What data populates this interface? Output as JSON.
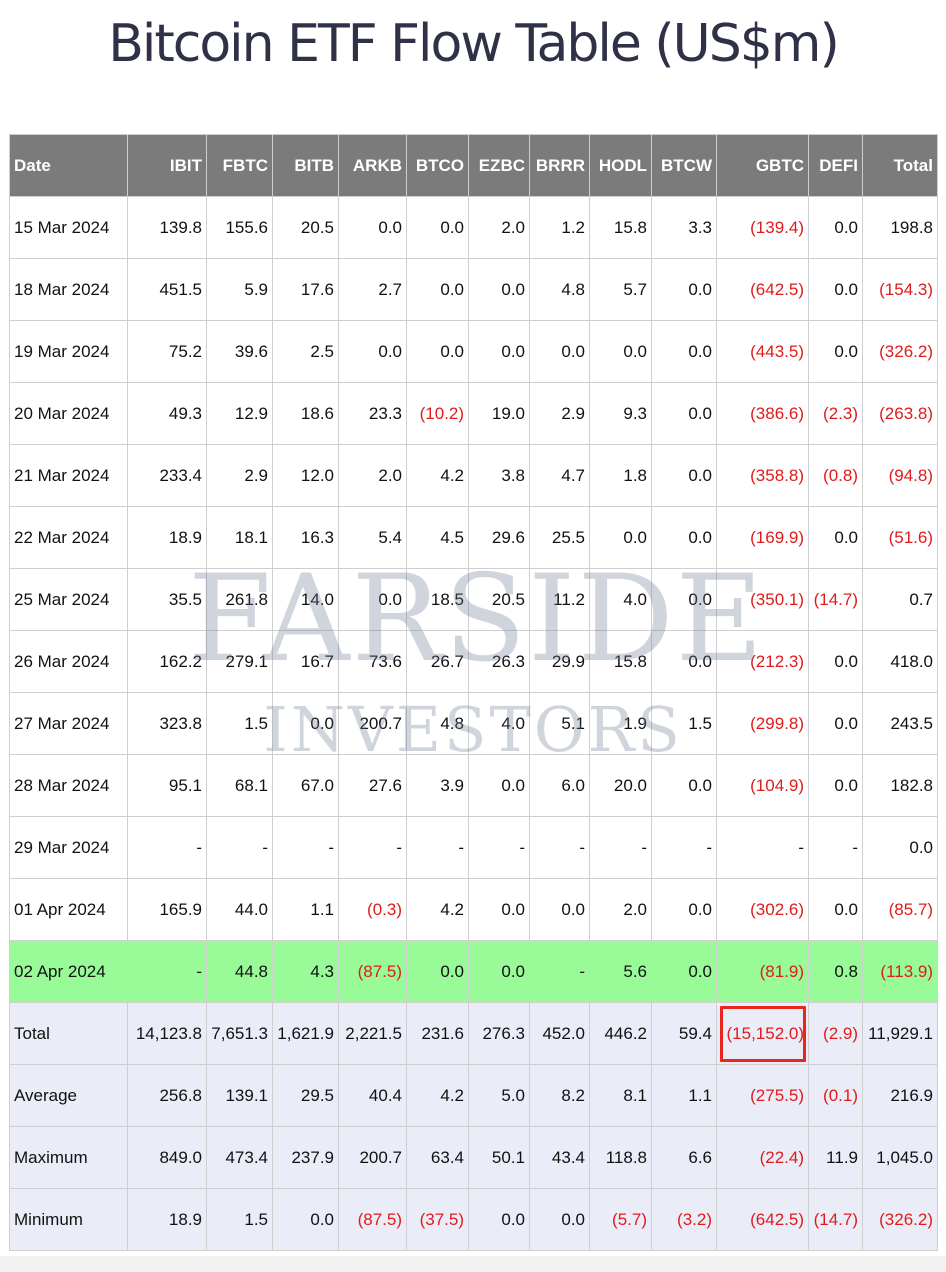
{
  "title": "Bitcoin ETF Flow Table (US$m)",
  "watermark": {
    "line1": "Farside",
    "line2": "Investors"
  },
  "columns": [
    "Date",
    "IBIT",
    "FBTC",
    "BITB",
    "ARKB",
    "BTCO",
    "EZBC",
    "BRRR",
    "HODL",
    "BTCW",
    "GBTC",
    "DEFI",
    "Total"
  ],
  "rows": [
    [
      "15 Mar 2024",
      "139.8",
      "155.6",
      "20.5",
      "0.0",
      "0.0",
      "2.0",
      "1.2",
      "15.8",
      "3.3",
      "(139.4)",
      "0.0",
      "198.8"
    ],
    [
      "18 Mar 2024",
      "451.5",
      "5.9",
      "17.6",
      "2.7",
      "0.0",
      "0.0",
      "4.8",
      "5.7",
      "0.0",
      "(642.5)",
      "0.0",
      "(154.3)"
    ],
    [
      "19 Mar 2024",
      "75.2",
      "39.6",
      "2.5",
      "0.0",
      "0.0",
      "0.0",
      "0.0",
      "0.0",
      "0.0",
      "(443.5)",
      "0.0",
      "(326.2)"
    ],
    [
      "20 Mar 2024",
      "49.3",
      "12.9",
      "18.6",
      "23.3",
      "(10.2)",
      "19.0",
      "2.9",
      "9.3",
      "0.0",
      "(386.6)",
      "(2.3)",
      "(263.8)"
    ],
    [
      "21 Mar 2024",
      "233.4",
      "2.9",
      "12.0",
      "2.0",
      "4.2",
      "3.8",
      "4.7",
      "1.8",
      "0.0",
      "(358.8)",
      "(0.8)",
      "(94.8)"
    ],
    [
      "22 Mar 2024",
      "18.9",
      "18.1",
      "16.3",
      "5.4",
      "4.5",
      "29.6",
      "25.5",
      "0.0",
      "0.0",
      "(169.9)",
      "0.0",
      "(51.6)"
    ],
    [
      "25 Mar 2024",
      "35.5",
      "261.8",
      "14.0",
      "0.0",
      "18.5",
      "20.5",
      "11.2",
      "4.0",
      "0.0",
      "(350.1)",
      "(14.7)",
      "0.7"
    ],
    [
      "26 Mar 2024",
      "162.2",
      "279.1",
      "16.7",
      "73.6",
      "26.7",
      "26.3",
      "29.9",
      "15.8",
      "0.0",
      "(212.3)",
      "0.0",
      "418.0"
    ],
    [
      "27 Mar 2024",
      "323.8",
      "1.5",
      "0.0",
      "200.7",
      "4.8",
      "4.0",
      "5.1",
      "1.9",
      "1.5",
      "(299.8)",
      "0.0",
      "243.5"
    ],
    [
      "28 Mar 2024",
      "95.1",
      "68.1",
      "67.0",
      "27.6",
      "3.9",
      "0.0",
      "6.0",
      "20.0",
      "0.0",
      "(104.9)",
      "0.0",
      "182.8"
    ],
    [
      "29 Mar 2024",
      "-",
      "-",
      "-",
      "-",
      "-",
      "-",
      "-",
      "-",
      "-",
      "-",
      "-",
      "0.0"
    ],
    [
      "01 Apr 2024",
      "165.9",
      "44.0",
      "1.1",
      "(0.3)",
      "4.2",
      "0.0",
      "0.0",
      "2.0",
      "0.0",
      "(302.6)",
      "0.0",
      "(85.7)"
    ],
    [
      "02 Apr 2024",
      "-",
      "44.8",
      "4.3",
      "(87.5)",
      "0.0",
      "0.0",
      "-",
      "5.6",
      "0.0",
      "(81.9)",
      "0.8",
      "(113.9)"
    ]
  ],
  "summary": [
    [
      "Total",
      "14,123.8",
      "7,651.3",
      "1,621.9",
      "2,221.5",
      "231.6",
      "276.3",
      "452.0",
      "446.2",
      "59.4",
      "(15,152.0)",
      "(2.9)",
      "11,929.1"
    ],
    [
      "Average",
      "256.8",
      "139.1",
      "29.5",
      "40.4",
      "4.2",
      "5.0",
      "8.2",
      "8.1",
      "1.1",
      "(275.5)",
      "(0.1)",
      "216.9"
    ],
    [
      "Maximum",
      "849.0",
      "473.4",
      "237.9",
      "200.7",
      "63.4",
      "50.1",
      "43.4",
      "118.8",
      "6.6",
      "(22.4)",
      "11.9",
      "1,045.0"
    ],
    [
      "Minimum",
      "18.9",
      "1.5",
      "0.0",
      "(87.5)",
      "(37.5)",
      "0.0",
      "0.0",
      "(5.7)",
      "(3.2)",
      "(642.5)",
      "(14.7)",
      "(326.2)"
    ]
  ],
  "colors": {
    "header_bg": "#7b7b7b",
    "highlight_row": "#98fb98",
    "summary_bg": "#eaedf7",
    "negative": "#e01b1b",
    "annotation_box": "#e8261e"
  }
}
